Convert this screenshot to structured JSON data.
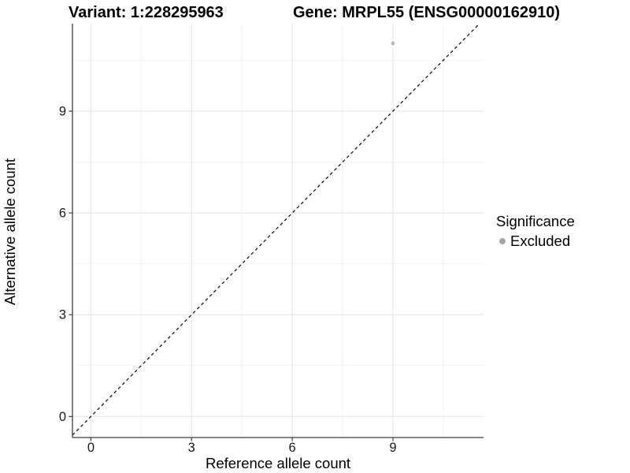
{
  "titles": {
    "variant": "Variant: 1:228295963",
    "gene": "Gene: MRPL55 (ENSG00000162910)"
  },
  "legend": {
    "title": "Significance",
    "items": [
      {
        "label": "Excluded",
        "color": "#a6a6a6"
      }
    ]
  },
  "colors": {
    "background": "#ffffff",
    "grid_major": "#e8e8e8",
    "grid_minor": "#f3f3f3",
    "axis_line": "#3d3d3d",
    "tick_text": "#1a1a1a",
    "point": "#b5b5b5",
    "reference_line": "#0a0a0a"
  },
  "chart_data": {
    "type": "scatter",
    "title": "Variant: 1:228295963   Gene: MRPL55 (ENSG00000162910)",
    "xlabel": "Reference allele count",
    "ylabel": "Alternative allele count",
    "xlim": [
      -0.55,
      11.7
    ],
    "ylim": [
      -0.62,
      11.58
    ],
    "x_ticks": [
      0,
      3,
      6,
      9
    ],
    "y_ticks": [
      0,
      3,
      6,
      9
    ],
    "x_minor_ticks": [
      1.5,
      4.5,
      7.5,
      10.5
    ],
    "y_minor_ticks": [
      1.5,
      4.5,
      7.5,
      10.5
    ],
    "grid": "major+minor",
    "legend_position": "right",
    "series": [
      {
        "name": "Excluded",
        "color": "#b5b5b5",
        "points": [
          {
            "x": 9,
            "y": 11
          }
        ]
      }
    ],
    "reference_line": {
      "equation": "y = x",
      "style": "dashed",
      "color": "#0a0a0a"
    }
  }
}
